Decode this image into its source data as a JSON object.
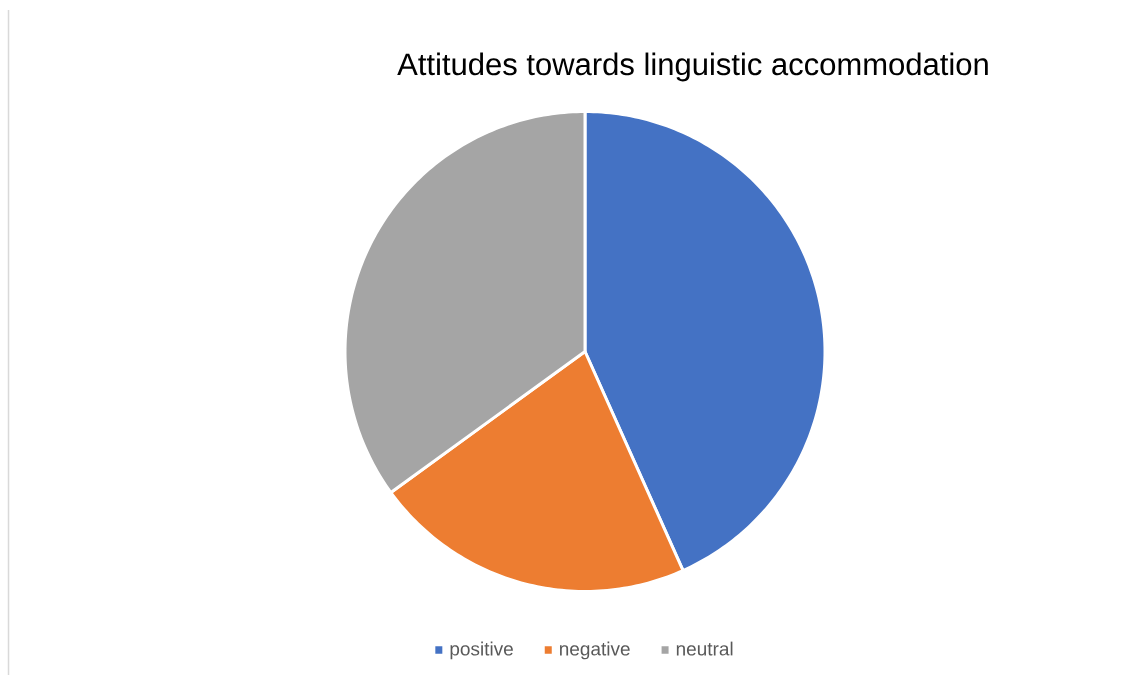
{
  "chart_data": {
    "type": "pie",
    "title": "Attitudes towards linguistic accommodation",
    "categories": [
      "positive",
      "negative",
      "neutral"
    ],
    "values": [
      43.3,
      21.7,
      35
    ],
    "colors": [
      "#4472c4",
      "#ed7d31",
      "#a5a5a5"
    ],
    "legend": "bottom"
  }
}
